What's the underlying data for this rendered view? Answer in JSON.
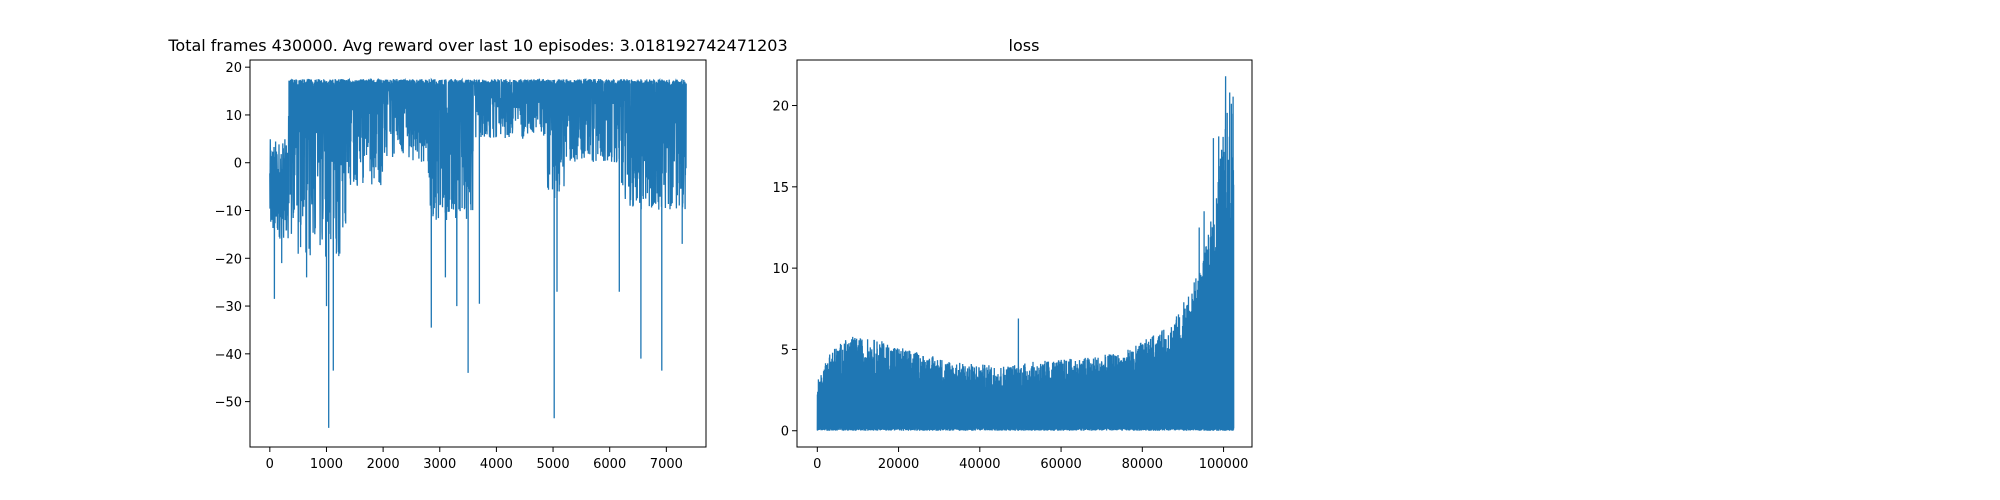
{
  "chart_data": [
    {
      "type": "line",
      "title": "Total frames 430000. Avg reward over last 10 episodes: 3.018192742471203",
      "xlabel": "",
      "ylabel": "",
      "xlim": [
        -350,
        7700
      ],
      "ylim": [
        -59.5,
        21.5
      ],
      "x_ticks": [
        0,
        1000,
        2000,
        3000,
        4000,
        5000,
        6000,
        7000
      ],
      "y_ticks": [
        -50,
        -40,
        -30,
        -20,
        -10,
        0,
        10,
        20
      ],
      "grid": false,
      "color": "#1f77b4",
      "x_range": [
        0,
        7350
      ],
      "baseline": 17.5,
      "noise_events": [
        [
          0,
          330,
          -16,
          5
        ],
        [
          330,
          1350,
          -20,
          17.5
        ],
        [
          1350,
          2000,
          -5,
          17.5
        ],
        [
          2000,
          2800,
          0,
          17.5
        ],
        [
          2800,
          3600,
          -12,
          17.5
        ],
        [
          3600,
          4900,
          5,
          17.5
        ],
        [
          4900,
          5200,
          -8,
          17.5
        ],
        [
          5200,
          6200,
          0,
          17.5
        ],
        [
          6200,
          7350,
          -10,
          17.5
        ]
      ],
      "spikes": [
        [
          80,
          -28.5
        ],
        [
          210,
          -21
        ],
        [
          650,
          -24
        ],
        [
          1000,
          -30
        ],
        [
          1040,
          -55.5
        ],
        [
          1120,
          -43.5
        ],
        [
          2850,
          -34.5
        ],
        [
          3100,
          -24
        ],
        [
          3300,
          -30
        ],
        [
          3500,
          -44
        ],
        [
          3700,
          -29.5
        ],
        [
          5020,
          -53.5
        ],
        [
          5070,
          -27
        ],
        [
          6170,
          -27
        ],
        [
          6550,
          -41
        ],
        [
          6920,
          -43.5
        ],
        [
          7280,
          -17
        ]
      ]
    },
    {
      "type": "line",
      "title": "loss",
      "xlabel": "",
      "ylabel": "",
      "xlim": [
        -5000,
        107000
      ],
      "ylim": [
        -1,
        22.8
      ],
      "x_ticks": [
        0,
        20000,
        40000,
        60000,
        80000,
        100000
      ],
      "y_ticks": [
        0,
        5,
        10,
        15,
        20
      ],
      "grid": false,
      "color": "#1f77b4",
      "x_range": [
        0,
        102500
      ],
      "envelope": [
        [
          0,
          3.0
        ],
        [
          3000,
          4.9
        ],
        [
          8000,
          5.8
        ],
        [
          15000,
          5.6
        ],
        [
          25000,
          4.8
        ],
        [
          35000,
          4.2
        ],
        [
          45000,
          4.0
        ],
        [
          55000,
          4.3
        ],
        [
          65000,
          4.5
        ],
        [
          75000,
          4.8
        ],
        [
          85000,
          6.2
        ],
        [
          90000,
          7.5
        ],
        [
          95000,
          10.5
        ],
        [
          98000,
          14.5
        ],
        [
          100000,
          18.5
        ],
        [
          102500,
          21.8
        ]
      ],
      "spikes": [
        [
          49500,
          6.9
        ],
        [
          90200,
          7.9
        ],
        [
          94000,
          12.5
        ],
        [
          95200,
          13.5
        ],
        [
          97500,
          18.0
        ],
        [
          98800,
          18.1
        ],
        [
          100500,
          21.8
        ],
        [
          101500,
          20.8
        ],
        [
          102300,
          19.5
        ]
      ]
    }
  ]
}
